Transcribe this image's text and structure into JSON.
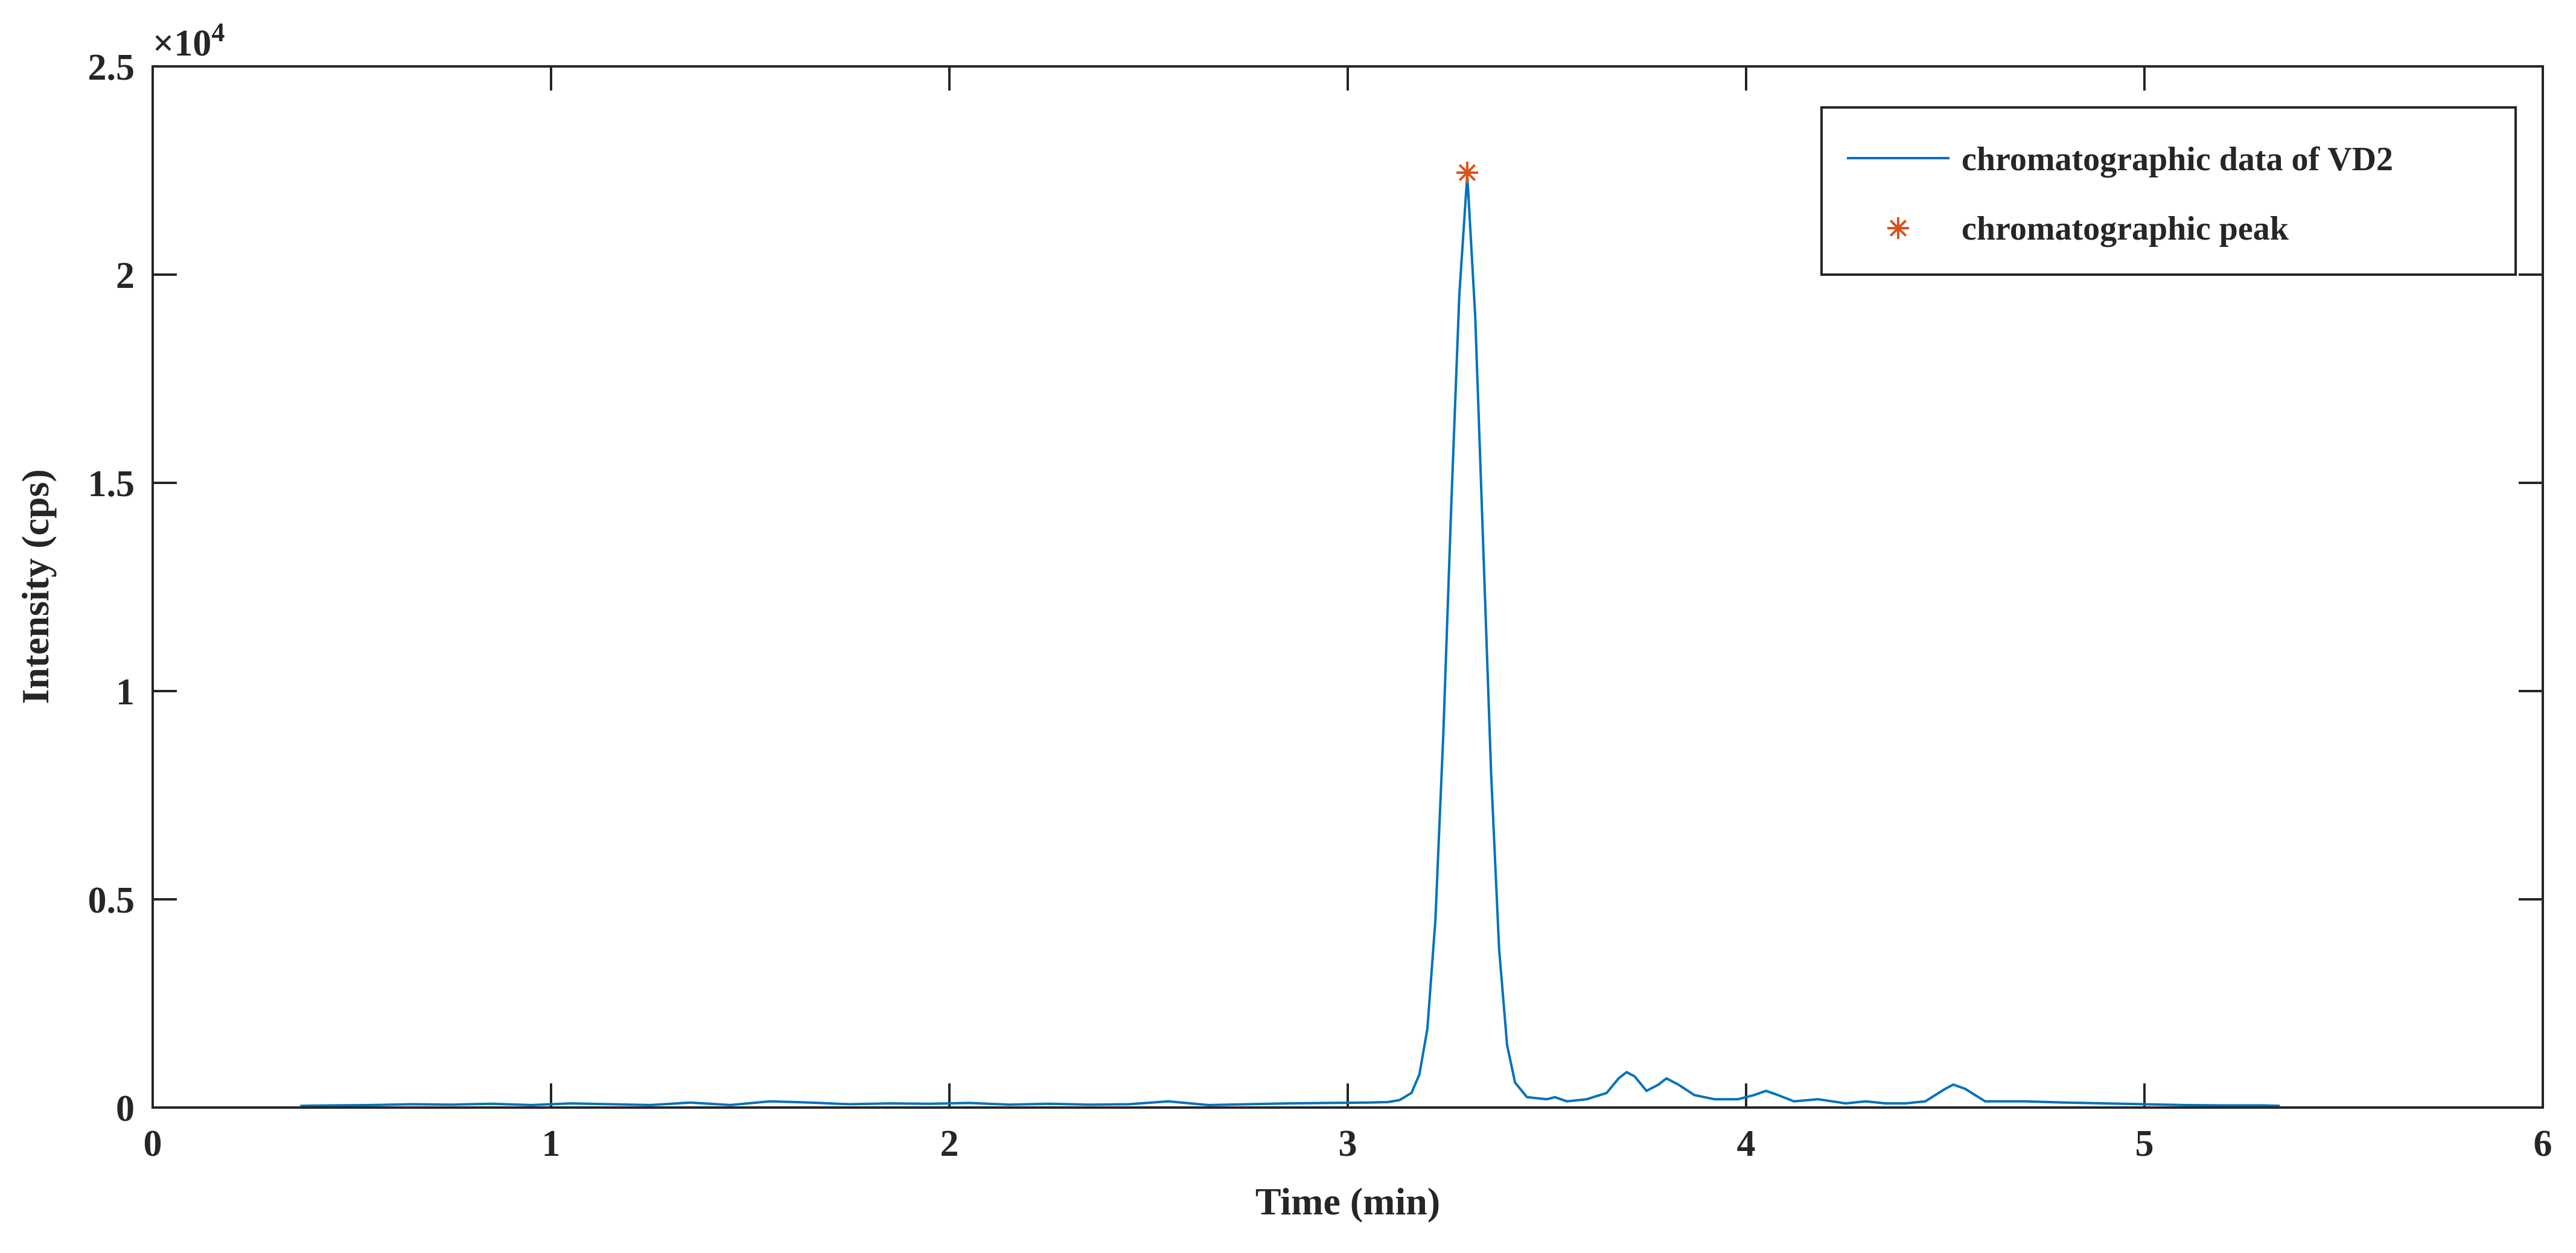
{
  "chart_data": {
    "type": "line",
    "title": "",
    "xlabel": "Time (min)",
    "ylabel": "Intensity (cps)",
    "xlim": [
      0,
      6
    ],
    "ylim": [
      0,
      25000
    ],
    "x_ticks": [
      0,
      1,
      2,
      3,
      4,
      5,
      6
    ],
    "x_tick_labels": [
      "0",
      "1",
      "2",
      "3",
      "4",
      "5",
      "6"
    ],
    "y_ticks": [
      0,
      5000,
      10000,
      15000,
      20000,
      25000
    ],
    "y_tick_labels": [
      "0",
      "0.5",
      "1",
      "1.5",
      "2",
      "2.5"
    ],
    "y_exponent_label": "×10",
    "y_exponent_power": "4",
    "grid": false,
    "legend_position": "top-right",
    "colors": {
      "line": "#0072BD",
      "marker": "#D95319",
      "axis": "#262626"
    },
    "series": [
      {
        "name": "chromatographic data of VD2",
        "kind": "line",
        "x": [
          0.37,
          0.45,
          0.55,
          0.65,
          0.75,
          0.85,
          0.95,
          1.05,
          1.15,
          1.25,
          1.35,
          1.45,
          1.55,
          1.65,
          1.75,
          1.85,
          1.95,
          2.05,
          2.15,
          2.25,
          2.35,
          2.45,
          2.55,
          2.65,
          2.75,
          2.85,
          2.95,
          3.05,
          3.1,
          3.13,
          3.16,
          3.18,
          3.2,
          3.22,
          3.24,
          3.26,
          3.28,
          3.3,
          3.32,
          3.34,
          3.36,
          3.38,
          3.4,
          3.42,
          3.45,
          3.5,
          3.52,
          3.55,
          3.6,
          3.65,
          3.68,
          3.7,
          3.72,
          3.75,
          3.78,
          3.8,
          3.83,
          3.87,
          3.92,
          3.98,
          4.02,
          4.05,
          4.08,
          4.12,
          4.18,
          4.25,
          4.3,
          4.35,
          4.4,
          4.45,
          4.5,
          4.52,
          4.55,
          4.6,
          4.7,
          4.8,
          4.9,
          5.0,
          5.1,
          5.2,
          5.3,
          5.34
        ],
        "y": [
          40,
          50,
          60,
          80,
          70,
          90,
          60,
          100,
          80,
          60,
          120,
          60,
          150,
          120,
          80,
          100,
          90,
          110,
          70,
          90,
          70,
          80,
          150,
          60,
          80,
          100,
          110,
          120,
          130,
          180,
          350,
          800,
          1900,
          4500,
          9000,
          14500,
          19500,
          22400,
          19000,
          13500,
          8000,
          3800,
          1500,
          600,
          250,
          200,
          250,
          150,
          200,
          350,
          700,
          850,
          750,
          400,
          550,
          700,
          550,
          300,
          200,
          200,
          300,
          400,
          300,
          150,
          200,
          100,
          150,
          100,
          100,
          150,
          450,
          550,
          450,
          150,
          150,
          120,
          100,
          80,
          60,
          50,
          50,
          40
        ]
      },
      {
        "name": "chromatographic peak",
        "kind": "marker",
        "marker": "*",
        "x": [
          3.3
        ],
        "y": [
          22450
        ]
      }
    ]
  }
}
